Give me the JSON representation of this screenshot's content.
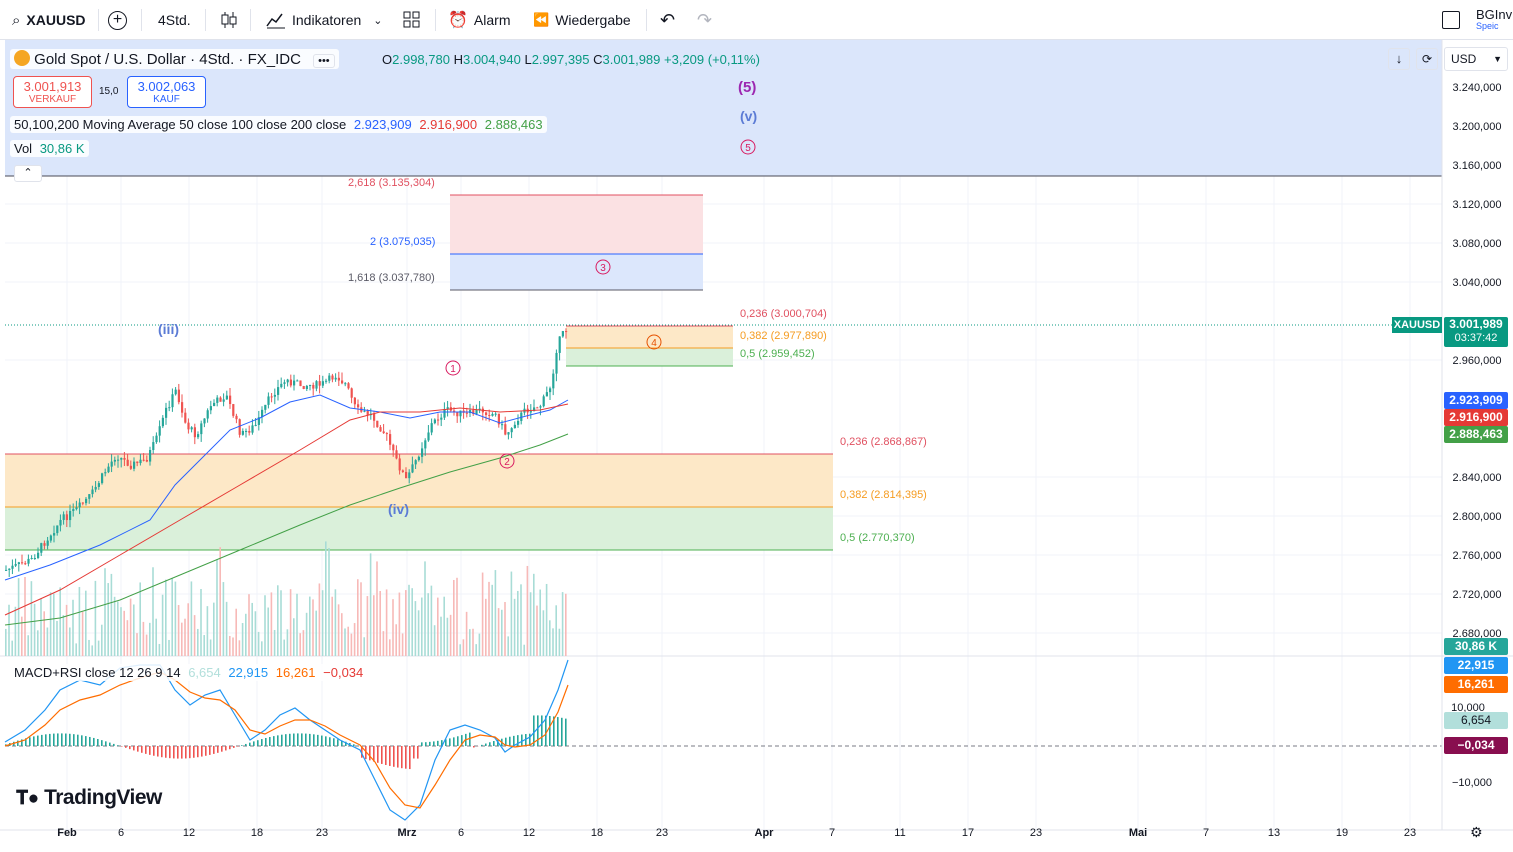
{
  "toolbar": {
    "symbol": "XAUUSD",
    "interval": "4Std.",
    "indicators_label": "Indikatoren",
    "alarm_label": "Alarm",
    "replay_label": "Wiedergabe",
    "account_label": "BGInv",
    "account_sub": "Speic"
  },
  "header": {
    "title": "Gold Spot / U.S. Dollar · 4Std. · FX_IDC",
    "more": "•••",
    "o_label": "O",
    "o_value": "2.998,780",
    "h_label": "H",
    "h_value": "3.004,940",
    "l_label": "L",
    "l_value": "2.997,395",
    "c_label": "C",
    "c_value": "3.001,989",
    "change": "+3,209 (+0,11%)",
    "currency": "USD"
  },
  "trade": {
    "sell_price": "3.001,913",
    "sell_label": "VERKAUF",
    "spread": "15,0",
    "buy_price": "3.002,063",
    "buy_label": "KAUF"
  },
  "ma_legend": {
    "label": "50,100,200 Moving Average 50 close 100 close 200 close",
    "ma50": "2.923,909",
    "ma100": "2.916,900",
    "ma200": "2.888,463"
  },
  "vol_legend": {
    "label": "Vol",
    "value": "30,86 K"
  },
  "macd_legend": {
    "label": "MACD+RSI close 12 26 9 14",
    "v1": "6,654",
    "v2": "22,915",
    "v3": "16,261",
    "v4": "−0,034"
  },
  "waves": {
    "iii": "(iii)",
    "iv": "(iv)",
    "five": "(5)",
    "v": "(v)",
    "c1": "1",
    "c2": "2",
    "c3": "3",
    "c4": "4",
    "c5": "5"
  },
  "fib_upper": {
    "l2618": "2,618 (3.135,304)",
    "l2": "2 (3.075,035)",
    "l1618": "1,618 (3.037,780)"
  },
  "fib_mid": {
    "l0236": "0,236 (3.000,704)",
    "l0382": "0,382 (2.977,890)",
    "l05": "0,5 (2.959,452)"
  },
  "fib_low": {
    "l0236": "0,236 (2.868,867)",
    "l0382": "0,382 (2.814,395)",
    "l05": "0,5 (2.770,370)"
  },
  "price_axis": [
    "3.240,000",
    "3.200,000",
    "3.160,000",
    "3.120,000",
    "3.080,000",
    "3.040,000",
    "2.960,000",
    "2.840,000",
    "2.800,000",
    "2.760,000",
    "2.720,000",
    "2.680,000"
  ],
  "price_tags": {
    "symbol": "XAUUSD",
    "last": "3.001,989",
    "countdown": "03:37:42",
    "ma50": "2.923,909",
    "ma100": "2.916,900",
    "ma200": "2.888,463",
    "vol": "30,86 K"
  },
  "macd_axis": {
    "t1": "22,915",
    "t2": "16,261",
    "l10": "10,000",
    "t3": "6,654",
    "t4": "−0,034",
    "lm10": "−10,000"
  },
  "time_axis": [
    "Feb",
    "6",
    "12",
    "18",
    "23",
    "Mrz",
    "6",
    "12",
    "18",
    "23",
    "Apr",
    "7",
    "11",
    "17",
    "23",
    "Mai",
    "7",
    "13",
    "19",
    "23"
  ],
  "brand": "TradingView",
  "colors": {
    "up": "#26a69a",
    "down": "#ef5350",
    "ma50": "#2962ff",
    "ma100": "#e53935",
    "ma200": "#43a047",
    "macd": "#2196f3",
    "signal": "#ff6d00",
    "accent_tag": "#089981"
  }
}
